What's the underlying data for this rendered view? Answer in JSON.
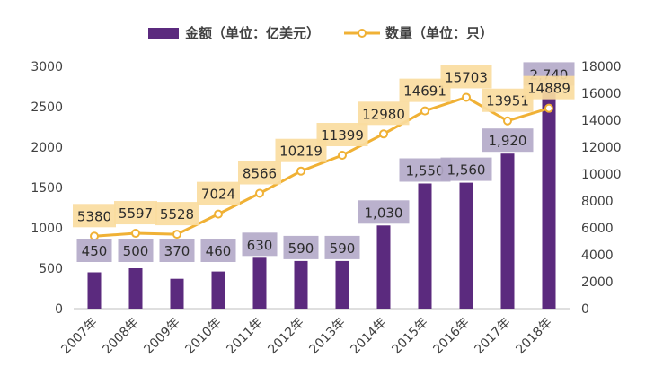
{
  "chart_data": {
    "type": "bar",
    "categories": [
      "2007年",
      "2008年",
      "2009年",
      "2010年",
      "2011年",
      "2012年",
      "2013年",
      "2014年",
      "2015年",
      "2016年",
      "2017年",
      "2018年"
    ],
    "series": [
      {
        "name": "金额（单位：亿美元）",
        "type": "bar",
        "axis": "left",
        "values": [
          450,
          500,
          370,
          460,
          630,
          590,
          590,
          1030,
          1550,
          1560,
          1920,
          2740
        ],
        "labels": [
          "450",
          "500",
          "370",
          "460",
          "630",
          "590",
          "590",
          "1,030",
          "1,550",
          "1,560",
          "1,920",
          "2,740"
        ]
      },
      {
        "name": "数量（单位：只）",
        "type": "line",
        "axis": "right",
        "values": [
          5380,
          5597,
          5528,
          7024,
          8566,
          10219,
          11399,
          12980,
          14691,
          15703,
          13951,
          14889
        ],
        "labels": [
          "5380",
          "5597",
          "5528",
          "7024",
          "8566",
          "10219",
          "11399",
          "12980",
          "14691",
          "15703",
          "13951",
          "14889"
        ]
      }
    ],
    "left_axis": {
      "min": 0,
      "max": 3000,
      "ticks": [
        "0",
        "500",
        "1000",
        "1500",
        "2000",
        "2500",
        "3000"
      ]
    },
    "right_axis": {
      "min": 0,
      "max": 18000,
      "ticks": [
        "0",
        "2000",
        "4000",
        "6000",
        "8000",
        "10000",
        "12000",
        "14000",
        "16000",
        "18000"
      ]
    },
    "legend_position": "top-center",
    "grid": false,
    "colors": {
      "bar": "#5b2a7e",
      "line": "#f0b135",
      "line_marker_fill": "#ffffff",
      "bar_label_bg": "#b3a9c8",
      "line_label_bg": "#fadca0",
      "axis_text": "#404040",
      "axis_line": "#bfbfbf"
    }
  }
}
